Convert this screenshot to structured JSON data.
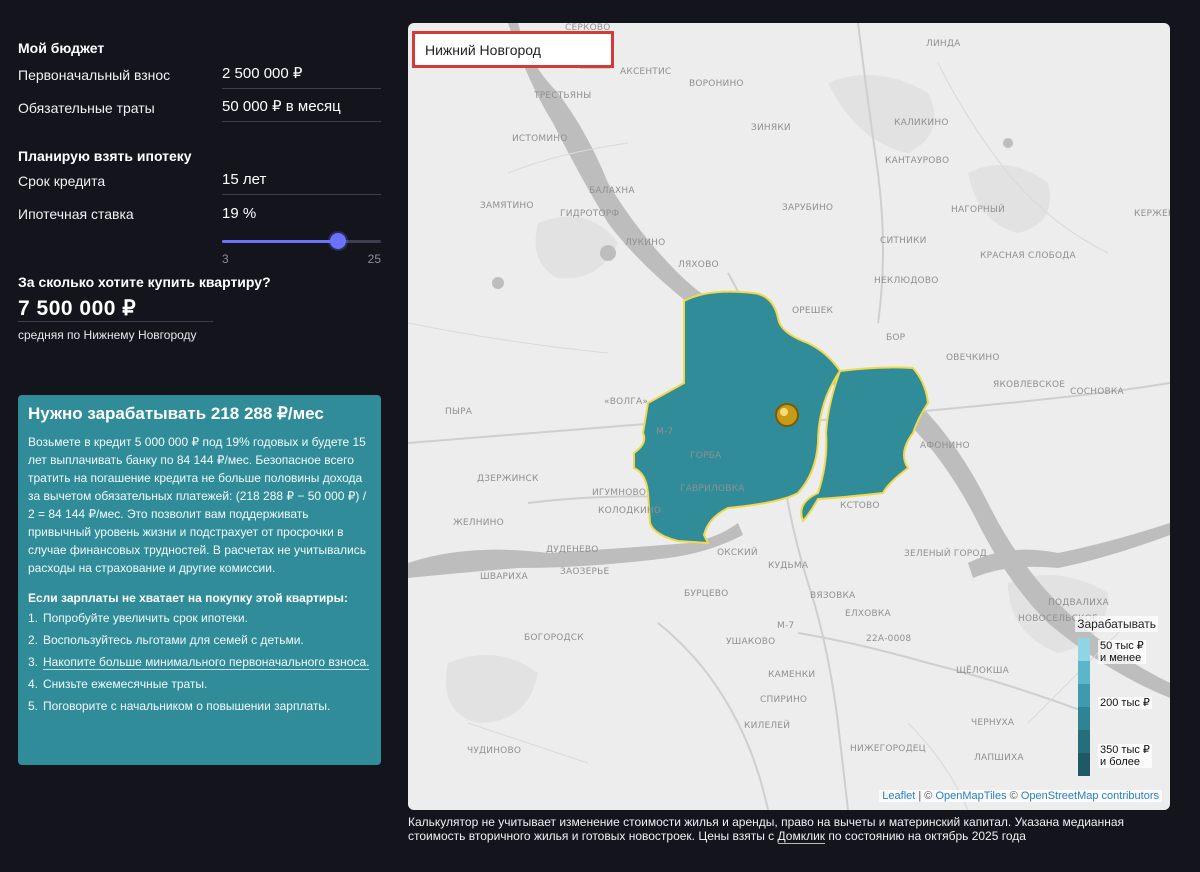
{
  "budget": {
    "title": "Мой бюджет",
    "down_payment_label": "Первоначальный взнос",
    "down_payment_value": "2 500 000 ₽",
    "expenses_label": "Обязательные траты",
    "expenses_value": "50 000 ₽ в месяц"
  },
  "mortgage": {
    "title": "Планирую взять ипотеку",
    "term_label": "Срок кредита",
    "term_value": "15 лет",
    "rate_label": "Ипотечная ставка",
    "rate_value": "19 %",
    "rate_min": "3",
    "rate_max": "25",
    "rate_fraction": 0.7273
  },
  "price": {
    "question": "За сколько хотите купить квартиру?",
    "value": "7 500 000 ₽",
    "note": "средняя по Нижнему Новгороду"
  },
  "result": {
    "title": "Нужно зарабатывать 218 288 ₽/мес",
    "body": "Возьмете в кредит 5 000 000 ₽ под 19% годовых и будете 15 лет выплачивать банку по 84 144 ₽/мес. Безопасное всего тратить на погашение кредита не больше половины дохода за вычетом обязательных платежей: (218 288 ₽ − 50 000 ₽) / 2 = 84 144 ₽/мес. Это позволит вам поддерживать привычный уровень жизни и подстрахует от просрочки в случае финансовых трудностей. В расчетах не учитывались расходы на страхование и другие комиссии.",
    "tips_title": "Если зарплаты не хватает на покупку этой квартиры:",
    "tips": [
      {
        "n": "1.",
        "text": "Попробуйте увеличить срок ипотеки."
      },
      {
        "n": "2.",
        "text": "Воспользуйтесь льготами для семей с детьми."
      },
      {
        "n": "3.",
        "text": "Накопите больше минимального первоначального взноса."
      },
      {
        "n": "4.",
        "text": "Снизьте ежемесячные траты."
      },
      {
        "n": "5.",
        "text": "Поговорите с начальником о повышении зарплаты."
      }
    ]
  },
  "map": {
    "city": "Нижний Новгород",
    "legend_title": "Зарабатывать",
    "legend_low": "50 тыс ₽\nи менее",
    "legend_mid": "200 тыс ₽",
    "legend_high": "350 тыс ₽\nи более",
    "legend_colors": [
      "#8fd5e4",
      "#5db6c8",
      "#3e9aac",
      "#2f8493",
      "#256e7b",
      "#1d5a65"
    ],
    "region_color": "#318c99",
    "attribution": {
      "leaflet": "Leaflet",
      "sep1": " | © ",
      "omt": "OpenMapTiles",
      "sep2": " © ",
      "osm": "OpenStreetMap contributors"
    },
    "places": [
      {
        "name": "СЕРКОВО"
      },
      {
        "name": "ЛИНДА"
      },
      {
        "name": "АКСЕНТИС"
      },
      {
        "name": "ВОРОНИНО"
      },
      {
        "name": "ТРЕСТЬЯНЫ"
      },
      {
        "name": "ЗИНЯКИ"
      },
      {
        "name": "КАЛИКИНО"
      },
      {
        "name": "ИСТОМИНО"
      },
      {
        "name": "КАНТАУРОВО"
      },
      {
        "name": "БАЛАХНА"
      },
      {
        "name": "ЗАМЯТИНО"
      },
      {
        "name": "ГИДРОТОРФ"
      },
      {
        "name": "ЗАРУБИНО"
      },
      {
        "name": "НАГОРНЫЙ"
      },
      {
        "name": "КЕРЖЕНЕЦ"
      },
      {
        "name": "СИТНИКИ"
      },
      {
        "name": "ЛУКИНО"
      },
      {
        "name": "КРАСНАЯ СЛОБОДА"
      },
      {
        "name": "ЛЯХОВО"
      },
      {
        "name": "НЕКЛЮДОВО"
      },
      {
        "name": "ОРЕШЕК"
      },
      {
        "name": "БОР"
      },
      {
        "name": "ОВЕЧКИНО"
      },
      {
        "name": "ЯКОВЛЕВСКОЕ"
      },
      {
        "name": "СОСНОВКА"
      },
      {
        "name": "ПЫРА"
      },
      {
        "name": "«ВОЛГА»"
      },
      {
        "name": "М-7"
      },
      {
        "name": "АФОНИНО"
      },
      {
        "name": "ДЗЕРЖИНСК"
      },
      {
        "name": "ГОРБА"
      },
      {
        "name": "ГАВРИЛОВКА"
      },
      {
        "name": "ИГУМНОВО"
      },
      {
        "name": "КОЛОДКИНО"
      },
      {
        "name": "ЖЕЛНИНО"
      },
      {
        "name": "КСТОВО"
      },
      {
        "name": "ЗЕЛЕНЫЙ ГОРОД"
      },
      {
        "name": "ОКСКИЙ"
      },
      {
        "name": "ДУДЕНЕВО"
      },
      {
        "name": "ЗАОЗЕРЬЕ"
      },
      {
        "name": "КУДЬМА"
      },
      {
        "name": "ШВАРИХА"
      },
      {
        "name": "БУРЦЕВО"
      },
      {
        "name": "ВЯЗОВКА"
      },
      {
        "name": "ПОДВАЛИХА"
      },
      {
        "name": "ЕЛХОВКА"
      },
      {
        "name": "НОВОСЕЛЬСКОЕ"
      },
      {
        "name": "БОГОРОДСК"
      },
      {
        "name": "М-7"
      },
      {
        "name": "УШАКОВО"
      },
      {
        "name": "22А-0008"
      },
      {
        "name": "КАМЕНКИ"
      },
      {
        "name": "ЩЁЛОКША"
      },
      {
        "name": "СПИРИНО"
      },
      {
        "name": "КИЛЕЛЕЙ"
      },
      {
        "name": "ЧЕРНУХА"
      },
      {
        "name": "ЧУДИНОВО"
      },
      {
        "name": "НИЖЕГОРОДЕЦ"
      },
      {
        "name": "ЛАПШИХА"
      }
    ]
  },
  "disclaimer": {
    "before": "Калькулятор не учитывает изменение стоимости жилья и аренды, право на вычеты и материнский капитал. Указана медианная стоимость вторичного жилья и готовых новостроек. Цены взяты с ",
    "link": "Домклик",
    "after": " по состоянию на октябрь 2025 года"
  }
}
